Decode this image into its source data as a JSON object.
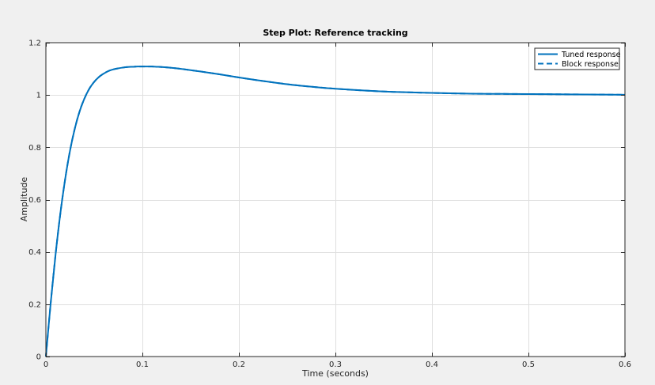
{
  "chart_data": {
    "type": "line",
    "title": "Step Plot: Reference tracking",
    "xlabel": "Time (seconds)",
    "ylabel": "Amplitude",
    "xlim": [
      0,
      0.6
    ],
    "ylim": [
      0,
      1.2
    ],
    "xticks": [
      0,
      0.1,
      0.2,
      0.3,
      0.4,
      0.5,
      0.6
    ],
    "yticks": [
      0,
      0.2,
      0.4,
      0.6,
      0.8,
      1,
      1.2
    ],
    "xtick_labels": [
      "0",
      "0.1",
      "0.2",
      "0.3",
      "0.4",
      "0.5",
      "0.6"
    ],
    "ytick_labels": [
      "0",
      "0.2",
      "0.4",
      "0.6",
      "0.8",
      "1",
      "1.2"
    ],
    "grid": true,
    "legend_position": "top-right",
    "series": [
      {
        "name": "Tuned response",
        "style": "solid",
        "color": "#0072bd",
        "x": [
          0,
          0.005,
          0.01,
          0.015,
          0.02,
          0.025,
          0.03,
          0.035,
          0.04,
          0.045,
          0.05,
          0.055,
          0.06,
          0.065,
          0.07,
          0.075,
          0.08,
          0.085,
          0.09,
          0.095,
          0.1,
          0.105,
          0.11,
          0.115,
          0.12,
          0.13,
          0.14,
          0.15,
          0.16,
          0.18,
          0.2,
          0.22,
          0.24,
          0.26,
          0.28,
          0.3,
          0.33,
          0.36,
          0.4,
          0.44,
          0.48,
          0.52,
          0.56,
          0.6
        ],
        "y": [
          0,
          0.205,
          0.389,
          0.547,
          0.679,
          0.787,
          0.872,
          0.938,
          0.987,
          1.024,
          1.05,
          1.069,
          1.082,
          1.092,
          1.098,
          1.102,
          1.105,
          1.107,
          1.108,
          1.109,
          1.109,
          1.109,
          1.109,
          1.108,
          1.107,
          1.104,
          1.1,
          1.095,
          1.09,
          1.079,
          1.067,
          1.056,
          1.046,
          1.037,
          1.03,
          1.024,
          1.017,
          1.012,
          1.008,
          1.005,
          1.004,
          1.003,
          1.002,
          1.001
        ]
      },
      {
        "name": "Block response",
        "style": "dashed",
        "color": "#0072bd",
        "x": [
          0,
          0.005,
          0.01,
          0.015,
          0.02,
          0.025,
          0.03,
          0.035,
          0.04,
          0.045,
          0.05,
          0.055,
          0.06,
          0.065,
          0.07,
          0.075,
          0.08,
          0.085,
          0.09,
          0.095,
          0.1,
          0.105,
          0.11,
          0.115,
          0.12,
          0.13,
          0.14,
          0.15,
          0.16,
          0.18,
          0.2,
          0.22,
          0.24,
          0.26,
          0.28,
          0.3,
          0.33,
          0.36,
          0.4,
          0.44,
          0.48,
          0.52,
          0.56,
          0.6
        ],
        "y": [
          0,
          0.205,
          0.389,
          0.547,
          0.679,
          0.787,
          0.872,
          0.938,
          0.987,
          1.024,
          1.05,
          1.069,
          1.082,
          1.092,
          1.098,
          1.102,
          1.105,
          1.107,
          1.108,
          1.109,
          1.109,
          1.109,
          1.109,
          1.108,
          1.107,
          1.104,
          1.1,
          1.095,
          1.09,
          1.079,
          1.067,
          1.056,
          1.046,
          1.037,
          1.03,
          1.024,
          1.017,
          1.012,
          1.008,
          1.005,
          1.004,
          1.003,
          1.002,
          1.001
        ]
      }
    ]
  }
}
